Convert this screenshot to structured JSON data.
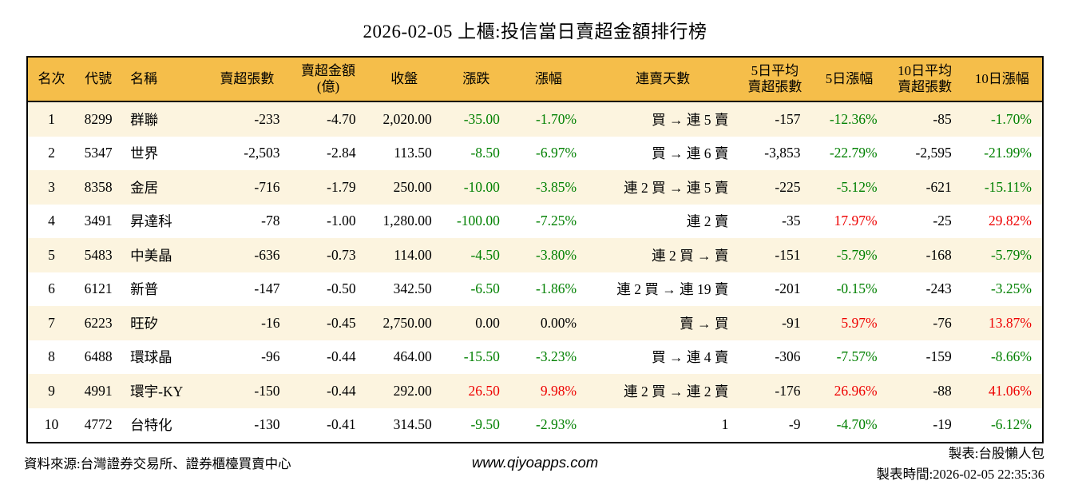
{
  "chart_data": {
    "type": "table",
    "title": "2026-02-05 上櫃:投信當日賣超金額排行榜",
    "columns": [
      "名次",
      "代號",
      "名稱",
      "賣超張數",
      "賣超金額\n(億)",
      "收盤",
      "漲跌",
      "漲幅",
      "連賣天數",
      "5日平均\n賣超張數",
      "5日漲幅",
      "10日平均\n賣超張數",
      "10日漲幅"
    ],
    "rows": [
      {
        "rank": "1",
        "code": "8299",
        "name": "群聯",
        "sell_shares": "-233",
        "sell_amount": "-4.70",
        "close": "2,020.00",
        "change": "-35.00",
        "change_pct": "-1.70%",
        "change_dir": "down",
        "streak": "買 → 連 5 賣",
        "avg5": "-157",
        "pct5": "-12.36%",
        "pct5_dir": "down",
        "avg10": "-85",
        "pct10": "-1.70%",
        "pct10_dir": "down"
      },
      {
        "rank": "2",
        "code": "5347",
        "name": "世界",
        "sell_shares": "-2,503",
        "sell_amount": "-2.84",
        "close": "113.50",
        "change": "-8.50",
        "change_pct": "-6.97%",
        "change_dir": "down",
        "streak": "買 → 連 6 賣",
        "avg5": "-3,853",
        "pct5": "-22.79%",
        "pct5_dir": "down",
        "avg10": "-2,595",
        "pct10": "-21.99%",
        "pct10_dir": "down"
      },
      {
        "rank": "3",
        "code": "8358",
        "name": "金居",
        "sell_shares": "-716",
        "sell_amount": "-1.79",
        "close": "250.00",
        "change": "-10.00",
        "change_pct": "-3.85%",
        "change_dir": "down",
        "streak": "連 2 買 → 連 5 賣",
        "avg5": "-225",
        "pct5": "-5.12%",
        "pct5_dir": "down",
        "avg10": "-621",
        "pct10": "-15.11%",
        "pct10_dir": "down"
      },
      {
        "rank": "4",
        "code": "3491",
        "name": "昇達科",
        "sell_shares": "-78",
        "sell_amount": "-1.00",
        "close": "1,280.00",
        "change": "-100.00",
        "change_pct": "-7.25%",
        "change_dir": "down",
        "streak": "連 2 賣",
        "avg5": "-35",
        "pct5": "17.97%",
        "pct5_dir": "up",
        "avg10": "-25",
        "pct10": "29.82%",
        "pct10_dir": "up"
      },
      {
        "rank": "5",
        "code": "5483",
        "name": "中美晶",
        "sell_shares": "-636",
        "sell_amount": "-0.73",
        "close": "114.00",
        "change": "-4.50",
        "change_pct": "-3.80%",
        "change_dir": "down",
        "streak": "連 2 買 → 賣",
        "avg5": "-151",
        "pct5": "-5.79%",
        "pct5_dir": "down",
        "avg10": "-168",
        "pct10": "-5.79%",
        "pct10_dir": "down"
      },
      {
        "rank": "6",
        "code": "6121",
        "name": "新普",
        "sell_shares": "-147",
        "sell_amount": "-0.50",
        "close": "342.50",
        "change": "-6.50",
        "change_pct": "-1.86%",
        "change_dir": "down",
        "streak": "連 2 買 → 連 19 賣",
        "avg5": "-201",
        "pct5": "-0.15%",
        "pct5_dir": "down",
        "avg10": "-243",
        "pct10": "-3.25%",
        "pct10_dir": "down"
      },
      {
        "rank": "7",
        "code": "6223",
        "name": "旺矽",
        "sell_shares": "-16",
        "sell_amount": "-0.45",
        "close": "2,750.00",
        "change": "0.00",
        "change_pct": "0.00%",
        "change_dir": "flat",
        "streak": "賣 → 買",
        "avg5": "-91",
        "pct5": "5.97%",
        "pct5_dir": "up",
        "avg10": "-76",
        "pct10": "13.87%",
        "pct10_dir": "up"
      },
      {
        "rank": "8",
        "code": "6488",
        "name": "環球晶",
        "sell_shares": "-96",
        "sell_amount": "-0.44",
        "close": "464.00",
        "change": "-15.50",
        "change_pct": "-3.23%",
        "change_dir": "down",
        "streak": "買 → 連 4 賣",
        "avg5": "-306",
        "pct5": "-7.57%",
        "pct5_dir": "down",
        "avg10": "-159",
        "pct10": "-8.66%",
        "pct10_dir": "down"
      },
      {
        "rank": "9",
        "code": "4991",
        "name": "環宇-KY",
        "sell_shares": "-150",
        "sell_amount": "-0.44",
        "close": "292.00",
        "change": "26.50",
        "change_pct": "9.98%",
        "change_dir": "up",
        "streak": "連 2 買 → 連 2 賣",
        "avg5": "-176",
        "pct5": "26.96%",
        "pct5_dir": "up",
        "avg10": "-88",
        "pct10": "41.06%",
        "pct10_dir": "up"
      },
      {
        "rank": "10",
        "code": "4772",
        "name": "台特化",
        "sell_shares": "-130",
        "sell_amount": "-0.41",
        "close": "314.50",
        "change": "-9.50",
        "change_pct": "-2.93%",
        "change_dir": "down",
        "streak": "1",
        "avg5": "-9",
        "pct5": "-4.70%",
        "pct5_dir": "down",
        "avg10": "-19",
        "pct10": "-6.12%",
        "pct10_dir": "down"
      }
    ]
  },
  "footer": {
    "source": "資料來源:台灣證券交易所、證券櫃檯買賣中心",
    "website": "www.qiyoapps.com",
    "author": "製表:台股懶人包",
    "time": "製表時間:2026-02-05 22:35:36"
  },
  "colors": {
    "header_bg": "#F5BE4A",
    "row_stripe_bg": "#FCF4DF",
    "up_red": "#EE0000",
    "down_green": "#008000",
    "flat_black": "#000000",
    "border": "#000000"
  }
}
